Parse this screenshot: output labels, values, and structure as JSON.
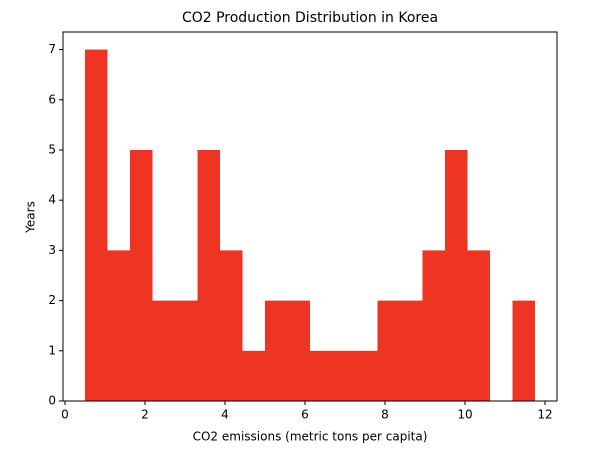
{
  "chart_data": {
    "type": "histogram",
    "title": "CO2 Production Distribution in Korea",
    "x_label": "CO2 emissions (metric tons per capita)",
    "y_label": "Years",
    "bins": [
      0.5,
      1.0625,
      1.625,
      2.1875,
      2.75,
      3.3125,
      3.875,
      4.4375,
      5.0,
      5.5625,
      6.125,
      6.6875,
      7.25,
      7.8125,
      8.375,
      8.9375,
      9.5,
      10.0625,
      10.625,
      11.1875,
      11.75
    ],
    "values": [
      7,
      3,
      5,
      2,
      2,
      5,
      3,
      1,
      2,
      2,
      1,
      1,
      1,
      2,
      2,
      3,
      5,
      3,
      0,
      2
    ],
    "color": "#ee3524",
    "xlim": [
      -0.05,
      12.3
    ],
    "xticks": [
      0,
      2,
      4,
      6,
      8,
      10,
      12
    ],
    "ylim": [
      0,
      7.35
    ],
    "yticks": [
      0,
      1,
      2,
      3,
      4,
      5,
      6,
      7
    ],
    "grid": false
  }
}
